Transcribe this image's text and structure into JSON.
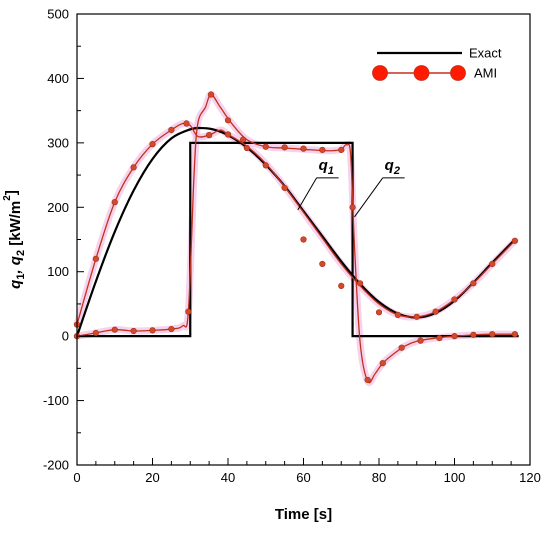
{
  "chart_data": {
    "type": "line",
    "xlabel": "Time [s]",
    "ylabel_parts": [
      "q",
      "1",
      ", q",
      "2",
      " [kW/m",
      "2",
      "]"
    ],
    "xlim": [
      0,
      120
    ],
    "ylim": [
      -200,
      500
    ],
    "xticks": [
      0,
      20,
      40,
      60,
      80,
      100,
      120
    ],
    "yticks": [
      -200,
      -100,
      0,
      100,
      200,
      300,
      400,
      500
    ],
    "x_minor_step": 5,
    "y_minor_step": 50,
    "grid": false,
    "legend_position": "top-right",
    "annotations": [
      {
        "base": "q",
        "sub": "1",
        "x": 64,
        "y": 258
      },
      {
        "base": "q",
        "sub": "2",
        "x": 81.5,
        "y": 258
      }
    ],
    "series": [
      {
        "name": "Exact",
        "color": "#000000",
        "style": "line",
        "curves": [
          {
            "x": [
              0,
              5,
              10,
              15,
              20,
              25,
              30,
              33,
              36,
              40,
              45,
              50,
              55,
              60,
              65,
              70,
              75,
              80,
              85,
              90,
              95,
              100,
              105,
              110,
              116
            ],
            "y": [
              0,
              85,
              162,
              226,
              275,
              307,
              321,
              323,
              321,
              312,
              293,
              266,
              233,
              194,
              155,
              116,
              81,
              53,
              35,
              29,
              36,
              55,
              83,
              114,
              150
            ]
          },
          {
            "x": [
              0,
              30,
              30,
              73,
              73,
              117
            ],
            "y": [
              0,
              0,
              300,
              300,
              0,
              0
            ]
          }
        ]
      },
      {
        "name": "AMI",
        "color": "#c0321e",
        "marker_color": "#ff1a00",
        "style": "line-marker",
        "curves": [
          {
            "x": [
              0,
              5,
              10,
              15,
              20,
              25,
              28,
              30,
              32,
              35,
              38,
              40,
              45,
              50,
              55,
              60,
              65,
              70,
              75,
              80,
              85,
              90,
              95,
              100,
              105,
              110,
              116
            ],
            "y": [
              18,
              120,
              208,
              262,
              298,
              320,
              330,
              327,
              310,
              312,
              320,
              313,
              295,
              268,
              232,
              192,
              152,
              112,
              78,
              50,
              33,
              30,
              38,
              57,
              82,
              112,
              148
            ]
          },
          {
            "x": [
              0,
              5,
              10,
              15,
              20,
              25,
              28,
              29.5,
              31,
              32,
              34,
              35.5,
              38,
              41,
              45,
              50,
              55,
              60,
              65,
              68,
              70,
              71.5,
              72.5,
              73.5,
              75,
              77,
              79,
              81,
              84,
              87,
              90,
              95,
              100,
              105,
              110,
              116
            ],
            "y": [
              0,
              5,
              10,
              8,
              9,
              11,
              16,
              38,
              250,
              330,
              355,
              375,
              355,
              330,
              305,
              294,
              292,
              290,
              288,
              288,
              290,
              297,
              280,
              140,
              -10,
              -70,
              -58,
              -42,
              -27,
              -15,
              -8,
              -3,
              0,
              2,
              3,
              3
            ]
          }
        ],
        "markers": [
          {
            "x": 0,
            "y": 18
          },
          {
            "x": 5,
            "y": 120
          },
          {
            "x": 10,
            "y": 208
          },
          {
            "x": 15,
            "y": 262
          },
          {
            "x": 20,
            "y": 298
          },
          {
            "x": 25,
            "y": 320
          },
          {
            "x": 29,
            "y": 330
          },
          {
            "x": 35,
            "y": 312
          },
          {
            "x": 40,
            "y": 313
          },
          {
            "x": 45,
            "y": 292
          },
          {
            "x": 50,
            "y": 265
          },
          {
            "x": 55,
            "y": 230
          },
          {
            "x": 60,
            "y": 150
          },
          {
            "x": 65,
            "y": 112
          },
          {
            "x": 70,
            "y": 78
          },
          {
            "x": 75,
            "y": 82
          },
          {
            "x": 80,
            "y": 37
          },
          {
            "x": 85,
            "y": 33
          },
          {
            "x": 90,
            "y": 30
          },
          {
            "x": 95,
            "y": 38
          },
          {
            "x": 100,
            "y": 57
          },
          {
            "x": 105,
            "y": 82
          },
          {
            "x": 110,
            "y": 112
          },
          {
            "x": 116,
            "y": 148
          },
          {
            "x": 0,
            "y": 0
          },
          {
            "x": 5,
            "y": 5
          },
          {
            "x": 10,
            "y": 10
          },
          {
            "x": 15,
            "y": 8
          },
          {
            "x": 20,
            "y": 9
          },
          {
            "x": 25,
            "y": 11
          },
          {
            "x": 29.5,
            "y": 38
          },
          {
            "x": 35.5,
            "y": 375
          },
          {
            "x": 40,
            "y": 335
          },
          {
            "x": 44,
            "y": 305
          },
          {
            "x": 50,
            "y": 294
          },
          {
            "x": 55,
            "y": 293
          },
          {
            "x": 60,
            "y": 291
          },
          {
            "x": 65,
            "y": 289
          },
          {
            "x": 70,
            "y": 289
          },
          {
            "x": 73,
            "y": 200
          },
          {
            "x": 77,
            "y": -68
          },
          {
            "x": 81,
            "y": -42
          },
          {
            "x": 86,
            "y": -18
          },
          {
            "x": 91,
            "y": -7
          },
          {
            "x": 96,
            "y": -3
          },
          {
            "x": 100,
            "y": 0
          },
          {
            "x": 105,
            "y": 2
          },
          {
            "x": 110,
            "y": 3
          },
          {
            "x": 116,
            "y": 3
          }
        ]
      }
    ]
  }
}
